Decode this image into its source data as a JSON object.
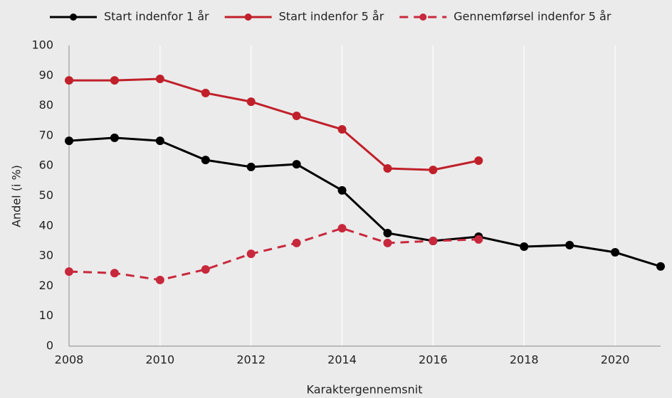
{
  "chart_data": {
    "type": "line",
    "x": [
      2008,
      2009,
      2010,
      2011,
      2012,
      2013,
      2014,
      2015,
      2016,
      2017,
      2018,
      2019,
      2020,
      2021
    ],
    "series": [
      {
        "name": "Start indenfor 1 år",
        "color": "#000000",
        "dashed": false,
        "values": [
          68.3,
          69.3,
          68.3,
          61.9,
          59.6,
          60.5,
          51.8,
          37.6,
          35.0,
          36.4,
          33.1,
          33.6,
          31.2,
          26.5
        ]
      },
      {
        "name": "Start indenfor 5 år",
        "color": "#c0202a",
        "dashed": false,
        "values": [
          88.4,
          88.4,
          88.9,
          84.2,
          81.3,
          76.6,
          72.1,
          59.1,
          58.6,
          61.7,
          null,
          null,
          null,
          null
        ]
      },
      {
        "name": "Gennemførsel indenfor 5 år",
        "color": "#c8283c",
        "dashed": true,
        "values": [
          24.8,
          24.3,
          22.0,
          25.5,
          30.7,
          34.3,
          39.2,
          34.3,
          35.0,
          35.5,
          null,
          null,
          null,
          null
        ]
      }
    ],
    "x_label": "Karaktergennemsnit",
    "y_label": "Andel  (i %)",
    "xlim": [
      2008,
      2021
    ],
    "xticks": [
      2008,
      2010,
      2012,
      2014,
      2016,
      2018,
      2020
    ],
    "ylim": [
      0,
      100
    ],
    "yticks": [
      0,
      10,
      20,
      30,
      40,
      50,
      60,
      70,
      80,
      90,
      100
    ],
    "grid": true,
    "legend": "top"
  }
}
